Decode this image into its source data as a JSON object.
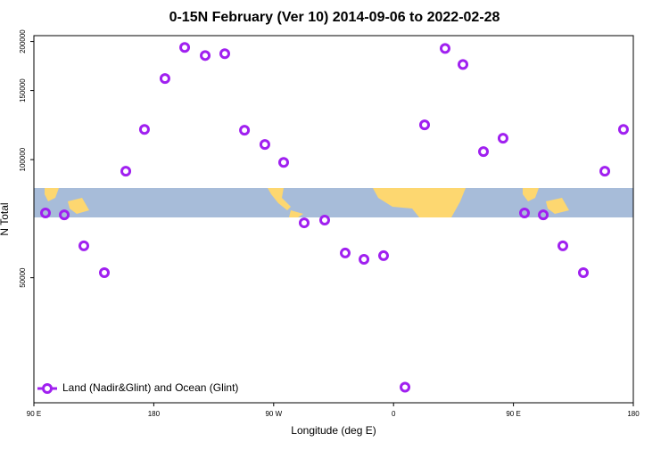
{
  "chart_data": {
    "type": "scatter",
    "title": "0-15N February (Ver 10)   2014-09-06 to 2022-02-28",
    "x_label": "Longitude (deg E)",
    "y_label": "N Total",
    "xlim": [
      90,
      540
    ],
    "xticks": [
      {
        "value": 90,
        "label": "90 E"
      },
      {
        "value": 180,
        "label": "180"
      },
      {
        "value": 270,
        "label": "90 W"
      },
      {
        "value": 360,
        "label": "0"
      },
      {
        "value": 450,
        "label": "90 E"
      },
      {
        "value": 540,
        "label": "180"
      }
    ],
    "ylim": [
      24000,
      207000
    ],
    "yticks": [
      50000,
      100000,
      150000,
      200000
    ],
    "log_y": true,
    "legend": "bottom-left",
    "series": [
      {
        "name": "Land (Nadir&Glint) and Ocean (Glint)",
        "color": "#a020f0",
        "x": [
          98.7,
          112.8,
          127.5,
          142.9,
          159,
          173,
          188.4,
          203.2,
          218.6,
          233.3,
          248.1,
          263.4,
          277.5,
          292.9,
          308.3,
          323.7,
          337.8,
          352.5,
          368.6,
          383.3,
          398.7,
          412.1,
          427.5,
          442.2,
          458.3,
          472.4,
          487.1,
          502.5,
          518.6,
          532.6
        ],
        "values": [
          73100,
          72300,
          60300,
          51500,
          93400,
          119400,
          160900,
          193100,
          184200,
          186200,
          118800,
          109300,
          98400,
          69000,
          70100,
          57800,
          55700,
          56900,
          26300,
          122600,
          192000,
          174800,
          104800,
          113400,
          73100,
          72300,
          60300,
          51500,
          93400,
          119400
        ]
      }
    ]
  }
}
